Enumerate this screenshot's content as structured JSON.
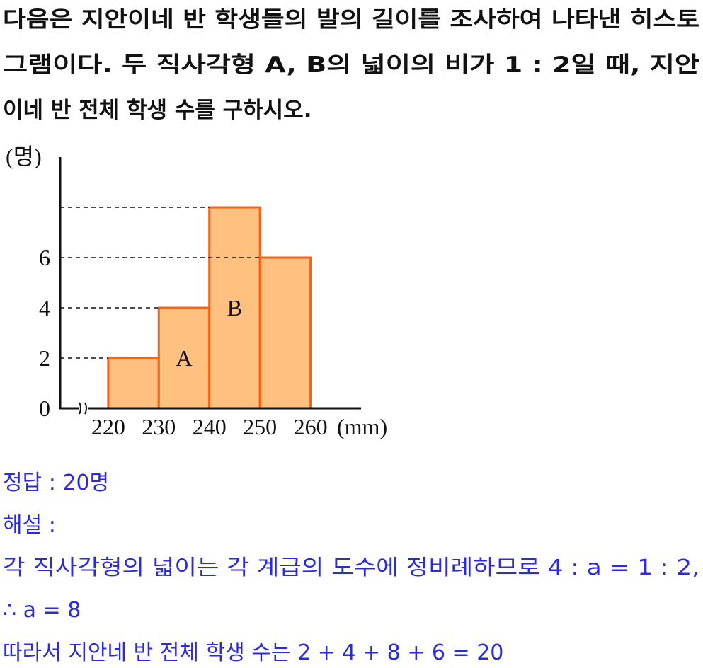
{
  "question": {
    "lines": [
      "다음은 지안이네 반 학생들의 발의 길이를 조사하여 나타낸 히스토",
      "그램이다. 두 직사각형 A, B의 넓이의 비가 1 : 2일 때, 지안",
      "이네 반 전체 학생 수를 구하시오."
    ]
  },
  "chart_data": {
    "type": "histogram",
    "bins": [
      220,
      230,
      240,
      250,
      260
    ],
    "values": [
      2,
      4,
      8,
      6
    ],
    "bar_labels": [
      null,
      "A",
      "B",
      null
    ],
    "y_label": "(명)",
    "x_label": "(mm)",
    "xlim": [
      210.5,
      270
    ],
    "ylim": [
      0,
      10
    ],
    "yticks": [
      0,
      2,
      4,
      6
    ],
    "color": "#ffc080",
    "edge_color": "#ff6010"
  },
  "answer": {
    "lines": [
      "정답 : 20명",
      "해설 :",
      "각 직사각형의 넓이는 각 계급의 도수에 정비례하므로 4 : a = 1 : 2,",
      "∴ a = 8",
      "따라서 지안네 반 전체 학생 수는 2 + 4 + 8 + 6 = 20"
    ]
  }
}
